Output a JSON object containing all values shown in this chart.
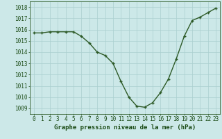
{
  "x": [
    0,
    1,
    2,
    3,
    4,
    5,
    6,
    7,
    8,
    9,
    10,
    11,
    12,
    13,
    14,
    15,
    16,
    17,
    18,
    19,
    20,
    21,
    22,
    23
  ],
  "y": [
    1015.7,
    1015.7,
    1015.8,
    1015.8,
    1015.8,
    1015.8,
    1015.4,
    1014.8,
    1014.0,
    1013.7,
    1013.0,
    1011.4,
    1010.0,
    1009.2,
    1009.1,
    1009.5,
    1010.4,
    1011.6,
    1013.4,
    1015.4,
    1016.8,
    1017.1,
    1017.5,
    1017.9
  ],
  "ylim": [
    1008.5,
    1018.5
  ],
  "yticks": [
    1009,
    1010,
    1011,
    1012,
    1013,
    1014,
    1015,
    1016,
    1017,
    1018
  ],
  "xticks": [
    0,
    1,
    2,
    3,
    4,
    5,
    6,
    7,
    8,
    9,
    10,
    11,
    12,
    13,
    14,
    15,
    16,
    17,
    18,
    19,
    20,
    21,
    22,
    23
  ],
  "xlabel": "Graphe pression niveau de la mer (hPa)",
  "line_color": "#2d5a27",
  "marker": "+",
  "background_color": "#cce8e8",
  "grid_color": "#aacfcf",
  "tick_label_color": "#1a4a14",
  "xlabel_color": "#1a4a14",
  "xlabel_fontsize": 6.5,
  "tick_fontsize": 5.5,
  "linewidth": 1.0,
  "markersize": 3.5
}
